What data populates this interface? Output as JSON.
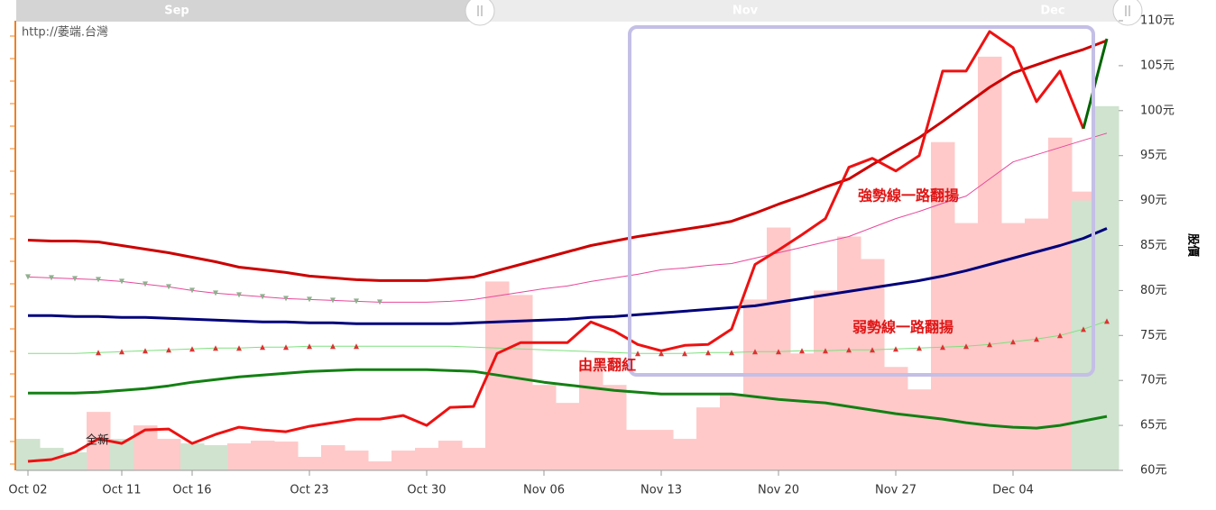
{
  "chart_data": {
    "type": "line",
    "watermark": "http://萎端.台灣",
    "y_label": "股價",
    "navigator_labels": [
      "Sep",
      "Nov",
      "Dec"
    ],
    "annotations": [
      "強勢線一路翻揚",
      "弱勢線一路翻揚",
      "由黑翻紅",
      "全新"
    ],
    "categories": [
      "Oct 02",
      null,
      null,
      null,
      "Oct 11",
      null,
      null,
      "Oct 16",
      null,
      null,
      null,
      null,
      "Oct 23",
      null,
      null,
      null,
      null,
      "Oct 30",
      null,
      null,
      null,
      null,
      "Nov 06",
      null,
      null,
      null,
      null,
      "Nov 13",
      null,
      null,
      null,
      null,
      "Nov 20",
      null,
      null,
      null,
      null,
      "Nov 27",
      null,
      null,
      null,
      null,
      "Dec 04",
      null,
      null,
      null,
      null
    ],
    "ylim": [
      60,
      110
    ],
    "yticks": [
      {
        "value": 60,
        "label": "60元"
      },
      {
        "value": 65,
        "label": "65元"
      },
      {
        "value": 70,
        "label": "70元"
      },
      {
        "value": 75,
        "label": "75元"
      },
      {
        "value": 80,
        "label": "80元"
      },
      {
        "value": 85,
        "label": "85元"
      },
      {
        "value": 90,
        "label": "90元"
      },
      {
        "value": 95,
        "label": "95元"
      },
      {
        "value": 100,
        "label": "100元"
      },
      {
        "value": 105,
        "label": "105元"
      },
      {
        "value": 110,
        "label": "110元"
      }
    ],
    "areas": [
      {
        "color": "#ffc9c9",
        "values": [
          null,
          null,
          null,
          66.5,
          null,
          65,
          63.5,
          null,
          null,
          63,
          63.3,
          63.2,
          61.5,
          62.8,
          62.2,
          61,
          62.2,
          62.5,
          63.3,
          62.5,
          81,
          79.5,
          69.5,
          67.5,
          71.5,
          69.5,
          64.5,
          64.5,
          63.5,
          67,
          68.5,
          79,
          87,
          73,
          80,
          86,
          83.5,
          71.5,
          69,
          96.5,
          87.5,
          106,
          87.5,
          88,
          97,
          91,
          null
        ]
      },
      {
        "color": "#cfe3cf",
        "values": [
          63.5,
          62.5,
          62,
          null,
          63.5,
          null,
          null,
          63,
          62.8,
          null,
          null,
          null,
          null,
          null,
          null,
          null,
          null,
          null,
          null,
          null,
          null,
          null,
          null,
          null,
          null,
          null,
          null,
          null,
          null,
          null,
          null,
          null,
          null,
          null,
          null,
          null,
          null,
          null,
          null,
          null,
          null,
          null,
          null,
          null,
          null,
          90,
          100.5
        ]
      }
    ],
    "series": [
      {
        "color": "#cc0000",
        "width": 3,
        "values": [
          85.6,
          85.5,
          85.5,
          85.4,
          85.0,
          84.6,
          84.2,
          83.7,
          83.2,
          82.6,
          82.3,
          82.0,
          81.6,
          81.4,
          81.2,
          81.1,
          81.1,
          81.1,
          81.3,
          81.5,
          82.2,
          82.9,
          83.6,
          84.3,
          85.0,
          85.5,
          86.0,
          86.4,
          86.8,
          87.2,
          87.7,
          88.6,
          89.6,
          90.5,
          91.5,
          92.4,
          94.0,
          95.5,
          97.0,
          98.8,
          100.7,
          102.6,
          104.2,
          105.1,
          106.0,
          106.8,
          107.8
        ]
      },
      {
        "color": "#e8479a",
        "width": 1,
        "values": [
          81.5,
          81.4,
          81.3,
          81.2,
          81.0,
          80.7,
          80.4,
          80.0,
          79.7,
          79.5,
          79.3,
          79.1,
          79.0,
          78.9,
          78.8,
          78.7,
          78.7,
          78.7,
          78.8,
          79.0,
          79.4,
          79.8,
          80.2,
          80.5,
          81.0,
          81.4,
          81.8,
          82.3,
          82.5,
          82.8,
          83.0,
          83.6,
          84.2,
          84.8,
          85.4,
          86.0,
          87.0,
          88.0,
          88.8,
          89.7,
          90.5,
          92.4,
          94.3,
          95.1,
          95.9,
          96.7,
          97.5
        ]
      },
      {
        "color": "#00007a",
        "width": 3,
        "values": [
          77.2,
          77.2,
          77.1,
          77.1,
          77.0,
          77.0,
          76.9,
          76.8,
          76.7,
          76.6,
          76.5,
          76.5,
          76.4,
          76.4,
          76.3,
          76.3,
          76.3,
          76.3,
          76.3,
          76.4,
          76.5,
          76.6,
          76.7,
          76.8,
          77.0,
          77.1,
          77.3,
          77.5,
          77.7,
          77.9,
          78.1,
          78.3,
          78.7,
          79.1,
          79.5,
          79.9,
          80.3,
          80.7,
          81.1,
          81.6,
          82.2,
          82.9,
          83.6,
          84.3,
          85.0,
          85.8,
          86.9
        ]
      },
      {
        "color": "#7ee07e",
        "width": 1,
        "values": [
          73.0,
          73.0,
          73.0,
          73.1,
          73.2,
          73.3,
          73.4,
          73.5,
          73.6,
          73.6,
          73.7,
          73.7,
          73.8,
          73.8,
          73.8,
          73.8,
          73.8,
          73.8,
          73.8,
          73.7,
          73.6,
          73.5,
          73.4,
          73.3,
          73.2,
          73.1,
          73.0,
          73.0,
          73.0,
          73.1,
          73.1,
          73.2,
          73.2,
          73.3,
          73.3,
          73.4,
          73.4,
          73.5,
          73.6,
          73.7,
          73.8,
          74.0,
          74.3,
          74.6,
          75.0,
          75.7,
          76.6
        ]
      },
      {
        "color": "#138013",
        "width": 3,
        "values": [
          68.6,
          68.6,
          68.6,
          68.7,
          68.9,
          69.1,
          69.4,
          69.8,
          70.1,
          70.4,
          70.6,
          70.8,
          71.0,
          71.1,
          71.2,
          71.2,
          71.2,
          71.2,
          71.1,
          71.0,
          70.6,
          70.2,
          69.8,
          69.5,
          69.2,
          68.9,
          68.7,
          68.5,
          68.5,
          68.5,
          68.5,
          68.2,
          67.9,
          67.7,
          67.5,
          67.1,
          66.7,
          66.3,
          66.0,
          65.7,
          65.3,
          65.0,
          64.8,
          64.7,
          65.0,
          65.5,
          66.0
        ]
      },
      {
        "color": "#ee1111",
        "width": 3,
        "values": [
          61.0,
          61.2,
          62.0,
          63.5,
          63.0,
          64.5,
          64.6,
          63.0,
          64.0,
          64.8,
          64.5,
          64.3,
          64.9,
          65.3,
          65.7,
          65.7,
          66.1,
          65.0,
          67.0,
          67.1,
          73.0,
          74.2,
          74.2,
          74.2,
          76.5,
          75.5,
          74.0,
          73.3,
          73.9,
          74.0,
          75.7,
          82.9,
          84.5,
          86.2,
          88.0,
          93.7,
          94.7,
          93.3,
          95.0,
          104.4,
          104.4,
          108.8,
          107.0,
          101.0,
          104.4,
          98.0,
          null
        ]
      },
      {
        "color": "#006400",
        "width": 3,
        "values": [
          null,
          null,
          null,
          null,
          null,
          null,
          null,
          null,
          null,
          null,
          null,
          null,
          null,
          null,
          null,
          null,
          null,
          null,
          null,
          null,
          null,
          null,
          null,
          null,
          null,
          null,
          null,
          null,
          null,
          null,
          null,
          null,
          null,
          null,
          null,
          null,
          null,
          null,
          null,
          null,
          null,
          null,
          null,
          null,
          null,
          98.0,
          108.0
        ]
      }
    ],
    "markers": [
      {
        "shape": "down",
        "color": "#8fb08f",
        "values": [
          81.5,
          81.4,
          81.3,
          81.2,
          81.0,
          80.7,
          80.4,
          80.0,
          79.7,
          79.5,
          79.3,
          79.1,
          79.0,
          78.9,
          78.8,
          78.7,
          null,
          null,
          null,
          null,
          null,
          null,
          null,
          null,
          null,
          null,
          null,
          null,
          null,
          null,
          null,
          null,
          null,
          null,
          null,
          null,
          null,
          null,
          null,
          null,
          null,
          null,
          null,
          null,
          null,
          null,
          null
        ]
      },
      {
        "shape": "up",
        "color": "#dd3333",
        "values": [
          null,
          null,
          null,
          73.1,
          73.2,
          73.3,
          73.4,
          73.5,
          73.6,
          73.6,
          73.7,
          73.7,
          73.8,
          73.8,
          73.8,
          null,
          null,
          null,
          null,
          null,
          null,
          null,
          null,
          null,
          null,
          null,
          73.0,
          73.0,
          73.0,
          73.1,
          73.1,
          73.2,
          73.2,
          73.3,
          73.3,
          73.4,
          73.4,
          73.5,
          73.6,
          73.7,
          73.8,
          74.0,
          74.3,
          74.6,
          75.0,
          75.7,
          76.6
        ]
      }
    ]
  }
}
